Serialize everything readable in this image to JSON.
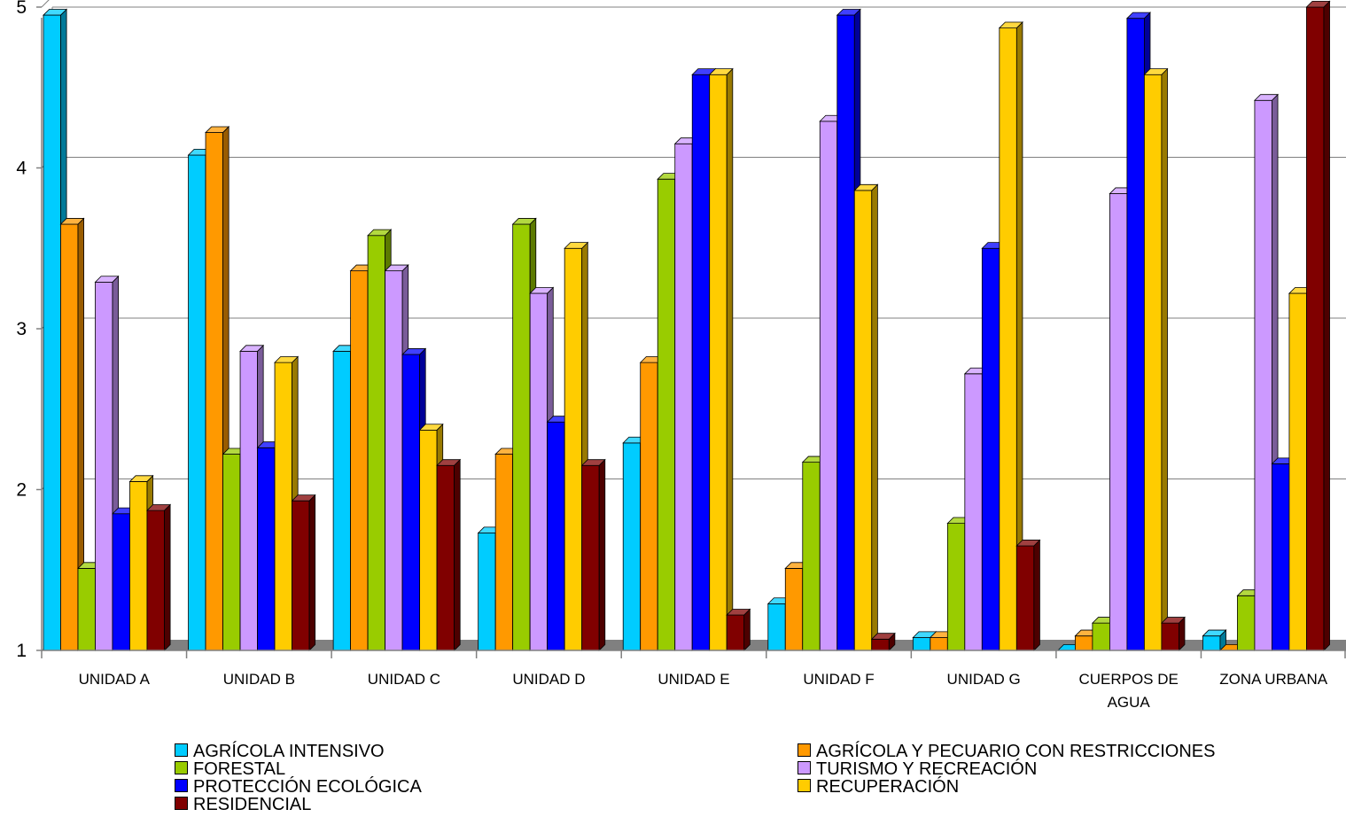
{
  "chart_data": {
    "type": "bar",
    "title": "",
    "xlabel": "",
    "ylabel": "",
    "ylim": [
      1,
      5
    ],
    "yticks": [
      "1",
      "2",
      "3",
      "4",
      "5"
    ],
    "grid": true,
    "legend_position": "bottom",
    "categories": [
      [
        "UNIDAD A"
      ],
      [
        "UNIDAD B"
      ],
      [
        "UNIDAD C"
      ],
      [
        "UNIDAD D"
      ],
      [
        "UNIDAD E"
      ],
      [
        "UNIDAD F"
      ],
      [
        "UNIDAD G"
      ],
      [
        "CUERPOS DE",
        "AGUA"
      ],
      [
        "ZONA URBANA"
      ]
    ],
    "series": [
      {
        "name": "AGRÍCOLA INTENSIVO",
        "color": "#00CCFF",
        "values": [
          4.95,
          4.08,
          2.86,
          1.73,
          2.29,
          1.29,
          1.08,
          1.0,
          1.09
        ]
      },
      {
        "name": "AGRÍCOLA Y PECUARIO CON RESTRICCIONES",
        "color": "#FF9900",
        "values": [
          3.65,
          4.22,
          3.36,
          2.22,
          2.79,
          1.51,
          1.08,
          1.09,
          1.0
        ]
      },
      {
        "name": "FORESTAL",
        "color": "#99CC00",
        "values": [
          1.51,
          2.22,
          3.58,
          3.65,
          3.93,
          2.17,
          1.79,
          1.17,
          1.34
        ]
      },
      {
        "name": "TURISMO Y RECREACIÓN",
        "color": "#CC99FF",
        "values": [
          3.29,
          2.86,
          3.36,
          3.22,
          4.15,
          4.29,
          2.72,
          3.84,
          4.42
        ]
      },
      {
        "name": "PROTECCIÓN ECOLÓGICA",
        "color": "#0000FF",
        "values": [
          1.85,
          2.26,
          2.84,
          2.42,
          4.58,
          4.95,
          3.5,
          4.93,
          2.16
        ]
      },
      {
        "name": "RECUPERACIÓN",
        "color": "#FFCC00",
        "values": [
          2.05,
          2.79,
          2.37,
          3.5,
          4.58,
          3.86,
          4.87,
          4.58,
          3.22
        ]
      },
      {
        "name": "RESIDENCIAL",
        "color": "#800000",
        "values": [
          1.87,
          1.93,
          2.15,
          2.15,
          1.22,
          1.07,
          1.65,
          1.17,
          5.0
        ]
      }
    ]
  }
}
